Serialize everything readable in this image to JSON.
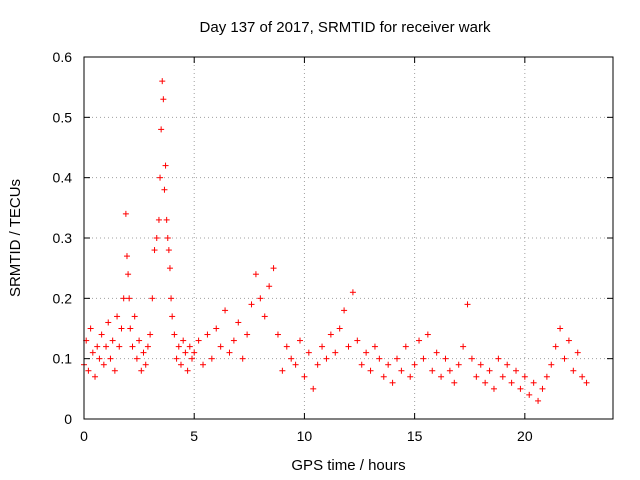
{
  "chart_data": {
    "type": "scatter",
    "title": "Day 137 of 2017, SRMTID for receiver wark",
    "xlabel": "GPS time / hours",
    "ylabel": "SRMTID / TECUs",
    "xlim": [
      0,
      24
    ],
    "ylim": [
      0,
      0.6
    ],
    "xticks": [
      0,
      5,
      10,
      15,
      20
    ],
    "yticks": [
      0,
      0.1,
      0.2,
      0.3,
      0.4,
      0.5,
      0.6
    ],
    "xtick_labels": [
      "0",
      "5",
      "10",
      "15",
      "20"
    ],
    "ytick_labels": [
      "0",
      "0.1",
      "0.2",
      "0.3",
      "0.4",
      "0.5",
      "0.6"
    ],
    "grid": true,
    "marker": "+",
    "series": [
      {
        "name": "SRMTID",
        "color": "#ff0000",
        "x": [
          0.0,
          0.1,
          0.2,
          0.3,
          0.4,
          0.5,
          0.6,
          0.7,
          0.8,
          0.9,
          1.0,
          1.1,
          1.2,
          1.3,
          1.4,
          1.5,
          1.6,
          1.7,
          1.8,
          1.9,
          1.95,
          2.0,
          2.05,
          2.1,
          2.2,
          2.3,
          2.4,
          2.5,
          2.6,
          2.7,
          2.8,
          2.9,
          3.0,
          3.1,
          3.2,
          3.3,
          3.4,
          3.45,
          3.5,
          3.55,
          3.6,
          3.65,
          3.7,
          3.75,
          3.8,
          3.85,
          3.9,
          3.95,
          4.0,
          4.1,
          4.2,
          4.3,
          4.4,
          4.5,
          4.6,
          4.7,
          4.8,
          4.9,
          5.0,
          5.2,
          5.4,
          5.6,
          5.8,
          6.0,
          6.2,
          6.4,
          6.6,
          6.8,
          7.0,
          7.2,
          7.4,
          7.6,
          7.8,
          8.0,
          8.2,
          8.4,
          8.6,
          8.8,
          9.0,
          9.2,
          9.4,
          9.6,
          9.8,
          10.0,
          10.2,
          10.4,
          10.6,
          10.8,
          11.0,
          11.2,
          11.4,
          11.6,
          11.8,
          12.0,
          12.2,
          12.4,
          12.6,
          12.8,
          13.0,
          13.2,
          13.4,
          13.6,
          13.8,
          14.0,
          14.2,
          14.4,
          14.6,
          14.8,
          15.0,
          15.2,
          15.4,
          15.6,
          15.8,
          16.0,
          16.2,
          16.4,
          16.6,
          16.8,
          17.0,
          17.2,
          17.4,
          17.6,
          17.8,
          18.0,
          18.2,
          18.4,
          18.6,
          18.8,
          19.0,
          19.2,
          19.4,
          19.6,
          19.8,
          20.0,
          20.2,
          20.4,
          20.6,
          20.8,
          21.0,
          21.2,
          21.4,
          21.6,
          21.8,
          22.0,
          22.2,
          22.4,
          22.6,
          22.8
        ],
        "y": [
          0.09,
          0.13,
          0.08,
          0.15,
          0.11,
          0.07,
          0.12,
          0.1,
          0.14,
          0.09,
          0.12,
          0.16,
          0.1,
          0.13,
          0.08,
          0.17,
          0.12,
          0.15,
          0.2,
          0.34,
          0.27,
          0.24,
          0.2,
          0.15,
          0.12,
          0.17,
          0.1,
          0.13,
          0.08,
          0.11,
          0.09,
          0.12,
          0.14,
          0.2,
          0.28,
          0.3,
          0.33,
          0.4,
          0.48,
          0.56,
          0.53,
          0.38,
          0.42,
          0.33,
          0.3,
          0.28,
          0.25,
          0.2,
          0.17,
          0.14,
          0.1,
          0.12,
          0.09,
          0.13,
          0.11,
          0.08,
          0.12,
          0.1,
          0.11,
          0.13,
          0.09,
          0.14,
          0.1,
          0.15,
          0.12,
          0.18,
          0.11,
          0.13,
          0.16,
          0.1,
          0.14,
          0.19,
          0.24,
          0.2,
          0.17,
          0.22,
          0.25,
          0.14,
          0.08,
          0.12,
          0.1,
          0.09,
          0.13,
          0.07,
          0.11,
          0.05,
          0.09,
          0.12,
          0.1,
          0.14,
          0.11,
          0.15,
          0.18,
          0.12,
          0.21,
          0.13,
          0.09,
          0.11,
          0.08,
          0.12,
          0.1,
          0.07,
          0.09,
          0.06,
          0.1,
          0.08,
          0.12,
          0.07,
          0.09,
          0.13,
          0.1,
          0.14,
          0.08,
          0.11,
          0.07,
          0.1,
          0.08,
          0.06,
          0.09,
          0.12,
          0.19,
          0.1,
          0.07,
          0.09,
          0.06,
          0.08,
          0.05,
          0.1,
          0.07,
          0.09,
          0.06,
          0.08,
          0.05,
          0.07,
          0.04,
          0.06,
          0.03,
          0.05,
          0.07,
          0.09,
          0.12,
          0.15,
          0.1,
          0.13,
          0.08,
          0.11,
          0.07,
          0.06
        ]
      }
    ]
  }
}
